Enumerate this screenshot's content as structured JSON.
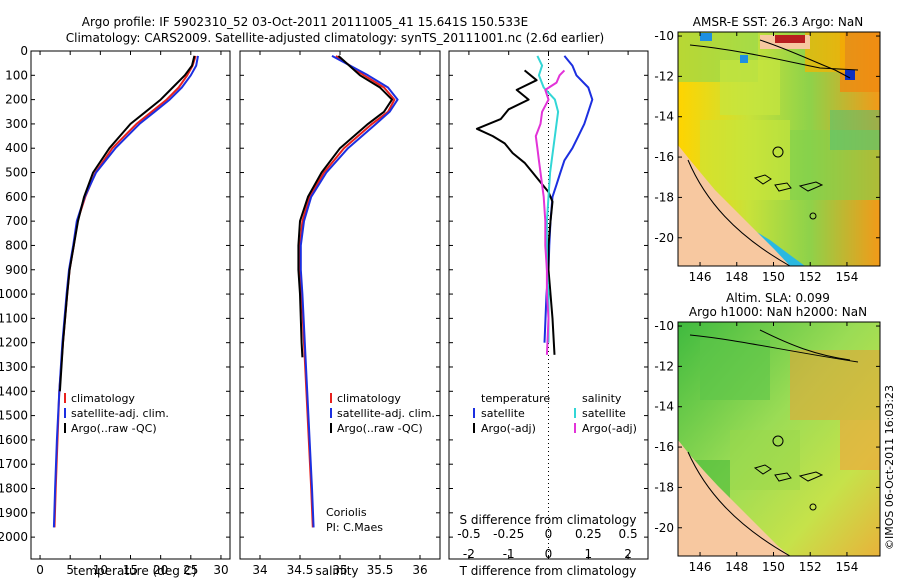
{
  "title": {
    "line1": "Argo profile: IF 5902310_52 03-Oct-2011 20111005_41 15.641S 150.533E",
    "line2": "Climatology: CARS2009. Satellite-adjusted climatology: synTS_20111001.nc (2.6d earlier)"
  },
  "depth_ticks": [
    "0",
    "100",
    "200",
    "300",
    "400",
    "500",
    "600",
    "700",
    "800",
    "900",
    "1000",
    "1100",
    "1200",
    "1300",
    "1400",
    "1500",
    "1600",
    "1700",
    "1800",
    "1900",
    "2000"
  ],
  "colors": {
    "climatology": "#e8211d",
    "satellite": "#1c2fe0",
    "argo": "#000000",
    "sat_salinity": "#32d6d6",
    "argo_salinity": "#e233d8"
  },
  "panels": {
    "temperature": {
      "xlabel": "temperature (deg C)",
      "ticks": [
        "0",
        "5",
        "10",
        "15",
        "20",
        "25",
        "30"
      ],
      "legend": [
        "climatology",
        "satellite-adj. clim.",
        "Argo(..raw -QC)"
      ]
    },
    "salinity": {
      "xlabel": "salinity",
      "ticks": [
        "34",
        "34.5",
        "35",
        "35.5",
        "36"
      ],
      "legend": [
        "climatology",
        "satellite-adj. clim.",
        "Argo(..raw -QC)"
      ],
      "note1": "Coriolis",
      "note2": "PI: C.Maes"
    },
    "difference": {
      "top_label": "S difference from climatology",
      "s_ticks": [
        "-0.5",
        "-0.25",
        "0",
        "0.25",
        "0.5"
      ],
      "t_ticks": [
        "-2",
        "-1",
        "0",
        "1",
        "2"
      ],
      "xlabel": "T difference from climatology",
      "legend_temp_title": "temperature",
      "legend_sal_title": "salinity",
      "legend_temp": [
        "satellite",
        "Argo(-adj)"
      ],
      "legend_sal": [
        "satellite",
        "Argo(-adj)"
      ]
    }
  },
  "maps": {
    "sst_title": "AMSR-E SST: 26.3  Argo: NaN",
    "sla_title1": "Altim. SLA: 0.099",
    "sla_title2": "Argo h1000: NaN h2000: NaN",
    "lat_ticks": [
      "-10",
      "-12",
      "-14",
      "-16",
      "-18",
      "-20"
    ],
    "lon_ticks": [
      "146",
      "148",
      "150",
      "152",
      "154"
    ]
  },
  "footer": "©IMOS 06-Oct-2011 16:03:23",
  "chart_data": {
    "type": "line",
    "ylabel": "depth",
    "ylim": [
      2000,
      0
    ],
    "temperature": {
      "xlim": [
        -1.5,
        31.5
      ],
      "series": [
        {
          "name": "climatology",
          "depth": [
            20,
            60,
            100,
            150,
            200,
            250,
            300,
            400,
            500,
            600,
            700,
            800,
            900,
            1000,
            1200,
            1400,
            1600,
            1800,
            1960
          ],
          "values": [
            25.8,
            25.3,
            24.4,
            23.0,
            21.0,
            18.5,
            16.0,
            12.0,
            9.2,
            7.5,
            6.2,
            5.6,
            4.9,
            4.5,
            3.8,
            3.2,
            2.9,
            2.6,
            2.4
          ]
        },
        {
          "name": "satellite-adj. clim.",
          "depth": [
            20,
            60,
            100,
            150,
            200,
            250,
            300,
            400,
            500,
            600,
            700,
            800,
            900,
            1000,
            1200,
            1400,
            1600,
            1800,
            1960
          ],
          "values": [
            26.2,
            25.9,
            25.0,
            23.5,
            21.5,
            19.0,
            16.5,
            12.5,
            9.3,
            7.4,
            6.1,
            5.5,
            4.8,
            4.4,
            3.7,
            3.2,
            2.8,
            2.5,
            2.3
          ]
        },
        {
          "name": "Argo(..raw -QC)",
          "depth": [
            20,
            60,
            100,
            150,
            200,
            250,
            300,
            400,
            500,
            600,
            700,
            800,
            900,
            1000,
            1200,
            1400
          ],
          "values": [
            25.6,
            25.2,
            24.0,
            22.0,
            20.0,
            17.5,
            15.0,
            11.5,
            8.8,
            7.3,
            6.3,
            5.6,
            4.9,
            4.5,
            3.8,
            3.3
          ]
        }
      ]
    },
    "salinity": {
      "xlim": [
        33.75,
        36.25
      ],
      "series": [
        {
          "name": "climatology",
          "depth": [
            20,
            100,
            150,
            200,
            250,
            300,
            400,
            500,
            600,
            700,
            800,
            900,
            1000,
            1200,
            1400,
            1600,
            1800,
            1960
          ],
          "values": [
            34.95,
            35.3,
            35.55,
            35.68,
            35.6,
            35.4,
            35.05,
            34.8,
            34.62,
            34.53,
            34.5,
            34.5,
            34.52,
            34.55,
            34.58,
            34.61,
            34.64,
            34.66
          ]
        },
        {
          "name": "satellite-adj. clim.",
          "depth": [
            20,
            100,
            150,
            200,
            250,
            300,
            400,
            500,
            600,
            700,
            800,
            900,
            1000,
            1200,
            1400,
            1600,
            1800,
            1960
          ],
          "values": [
            34.9,
            35.35,
            35.6,
            35.72,
            35.62,
            35.45,
            35.1,
            34.83,
            34.64,
            34.55,
            34.51,
            34.51,
            34.53,
            34.56,
            34.59,
            34.62,
            34.65,
            34.67
          ]
        },
        {
          "name": "Argo(..raw -QC)",
          "depth": [
            20,
            100,
            150,
            200,
            250,
            300,
            400,
            500,
            600,
            700,
            800,
            900,
            1000,
            1200,
            1260
          ],
          "values": [
            34.98,
            35.25,
            35.5,
            35.65,
            35.55,
            35.35,
            35.0,
            34.77,
            34.6,
            34.5,
            34.48,
            34.48,
            34.5,
            34.52,
            34.53
          ]
        }
      ]
    },
    "difference": {
      "t_xlim": [
        -2.5,
        2.5
      ],
      "s_xlim": [
        -0.625,
        0.625
      ],
      "series": [
        {
          "name": "temperature satellite",
          "axis": "T",
          "depth": [
            20,
            60,
            100,
            150,
            200,
            250,
            300,
            350,
            400,
            450,
            500,
            550,
            600,
            700,
            800,
            900,
            1000,
            1200
          ],
          "values": [
            0.4,
            0.6,
            0.7,
            1.0,
            1.1,
            1.0,
            0.9,
            0.75,
            0.6,
            0.4,
            0.3,
            0.2,
            0.1,
            0.05,
            0.02,
            0.0,
            -0.05,
            -0.1
          ]
        },
        {
          "name": "temperature Argo(-adj)",
          "axis": "T",
          "depth": [
            80,
            120,
            160,
            200,
            240,
            280,
            320,
            350,
            380,
            420,
            460,
            500,
            540,
            580,
            620,
            700,
            800,
            900,
            1000,
            1100,
            1250
          ],
          "values": [
            -0.6,
            -0.3,
            -0.8,
            -0.5,
            -1.0,
            -1.2,
            -1.8,
            -1.4,
            -1.1,
            -0.9,
            -0.6,
            -0.4,
            -0.2,
            0.0,
            0.1,
            0.05,
            0.0,
            0.0,
            0.05,
            0.1,
            0.15
          ]
        },
        {
          "name": "salinity satellite",
          "axis": "S",
          "depth": [
            20,
            60,
            100,
            150,
            200,
            250,
            300,
            350,
            400,
            450,
            500,
            600,
            700,
            800,
            900,
            1000,
            1200
          ],
          "values": [
            -0.07,
            -0.04,
            -0.06,
            -0.03,
            0.04,
            0.06,
            0.05,
            0.04,
            0.03,
            0.02,
            0.01,
            0.0,
            -0.01,
            -0.01,
            -0.01,
            0.0,
            0.0
          ]
        },
        {
          "name": "salinity Argo(-adj)",
          "axis": "S",
          "depth": [
            80,
            100,
            130,
            160,
            200,
            250,
            300,
            350,
            400,
            450,
            500,
            550,
            600,
            700,
            800,
            900,
            1000,
            1100,
            1250
          ],
          "values": [
            0.1,
            0.07,
            0.05,
            -0.02,
            0.0,
            -0.04,
            -0.05,
            -0.08,
            -0.07,
            -0.06,
            -0.05,
            -0.04,
            -0.03,
            -0.02,
            -0.02,
            -0.01,
            -0.01,
            0.0,
            -0.01
          ]
        }
      ]
    }
  }
}
